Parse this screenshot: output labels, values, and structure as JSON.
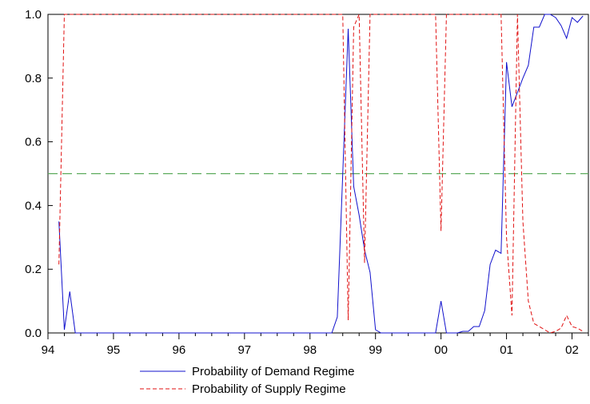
{
  "chart_data": {
    "type": "line",
    "title": "",
    "xlabel": "",
    "ylabel": "",
    "x_axis": {
      "min": 1994.0,
      "max": 2002.25,
      "ticks": [
        {
          "value": 1994.0,
          "label": "94"
        },
        {
          "value": 1995.0,
          "label": "95"
        },
        {
          "value": 1996.0,
          "label": "96"
        },
        {
          "value": 1997.0,
          "label": "97"
        },
        {
          "value": 1998.0,
          "label": "98"
        },
        {
          "value": 1999.0,
          "label": "99"
        },
        {
          "value": 2000.0,
          "label": "00"
        },
        {
          "value": 2001.0,
          "label": "01"
        },
        {
          "value": 2002.0,
          "label": "02"
        }
      ]
    },
    "y_axis": {
      "min": 0.0,
      "max": 1.0,
      "ticks": [
        {
          "value": 0.0,
          "label": "0.0"
        },
        {
          "value": 0.2,
          "label": "0.2"
        },
        {
          "value": 0.4,
          "label": "0.4"
        },
        {
          "value": 0.6,
          "label": "0.6"
        },
        {
          "value": 0.8,
          "label": "0.8"
        },
        {
          "value": 1.0,
          "label": "1.0"
        }
      ]
    },
    "grid": false,
    "legend_position": "bottom",
    "reference_line": {
      "y": 0.5,
      "color": "#5aaa5a",
      "style": "dashed"
    },
    "series": [
      {
        "name": "Probability of Demand Regime",
        "color": "#1010cc",
        "style": "solid",
        "points": [
          [
            1994.167,
            0.35
          ],
          [
            1994.25,
            0.01
          ],
          [
            1994.333,
            0.13
          ],
          [
            1994.417,
            0.0
          ],
          [
            1998.333,
            0.0
          ],
          [
            1998.417,
            0.05
          ],
          [
            1998.5,
            0.5
          ],
          [
            1998.583,
            0.955
          ],
          [
            1998.667,
            0.46
          ],
          [
            1998.75,
            0.37
          ],
          [
            1998.833,
            0.26
          ],
          [
            1998.917,
            0.19
          ],
          [
            1999.0,
            0.01
          ],
          [
            1999.083,
            0.0
          ],
          [
            1999.917,
            0.0
          ],
          [
            2000.0,
            0.1
          ],
          [
            2000.083,
            0.0
          ],
          [
            2000.25,
            0.0
          ],
          [
            2000.333,
            0.005
          ],
          [
            2000.417,
            0.005
          ],
          [
            2000.5,
            0.02
          ],
          [
            2000.583,
            0.02
          ],
          [
            2000.667,
            0.07
          ],
          [
            2000.75,
            0.215
          ],
          [
            2000.833,
            0.26
          ],
          [
            2000.917,
            0.25
          ],
          [
            2001.0,
            0.85
          ],
          [
            2001.083,
            0.71
          ],
          [
            2001.167,
            0.755
          ],
          [
            2001.25,
            0.8
          ],
          [
            2001.333,
            0.84
          ],
          [
            2001.417,
            0.96
          ],
          [
            2001.5,
            0.96
          ],
          [
            2001.583,
            1.0
          ],
          [
            2001.667,
            1.0
          ],
          [
            2001.75,
            0.99
          ],
          [
            2001.833,
            0.965
          ],
          [
            2001.917,
            0.925
          ],
          [
            2002.0,
            0.99
          ],
          [
            2002.083,
            0.975
          ],
          [
            2002.167,
            0.995
          ]
        ]
      },
      {
        "name": "Probability of Supply Regime",
        "color": "#e01010",
        "style": "dashed",
        "points": [
          [
            1994.167,
            0.215
          ],
          [
            1994.25,
            1.0
          ],
          [
            1998.5,
            1.0
          ],
          [
            1998.583,
            0.04
          ],
          [
            1998.667,
            0.96
          ],
          [
            1998.75,
            1.0
          ],
          [
            1998.833,
            0.22
          ],
          [
            1998.917,
            1.0
          ],
          [
            1999.917,
            1.0
          ],
          [
            2000.0,
            0.32
          ],
          [
            2000.083,
            1.0
          ],
          [
            2000.917,
            1.0
          ],
          [
            2001.0,
            0.3
          ],
          [
            2001.083,
            0.055
          ],
          [
            2001.167,
            1.0
          ],
          [
            2001.25,
            0.35
          ],
          [
            2001.333,
            0.1
          ],
          [
            2001.417,
            0.03
          ],
          [
            2001.5,
            0.02
          ],
          [
            2001.583,
            0.01
          ],
          [
            2001.667,
            0.0
          ],
          [
            2001.75,
            0.005
          ],
          [
            2001.833,
            0.015
          ],
          [
            2001.917,
            0.055
          ],
          [
            2002.0,
            0.02
          ],
          [
            2002.083,
            0.015
          ],
          [
            2002.167,
            0.005
          ]
        ]
      }
    ]
  }
}
